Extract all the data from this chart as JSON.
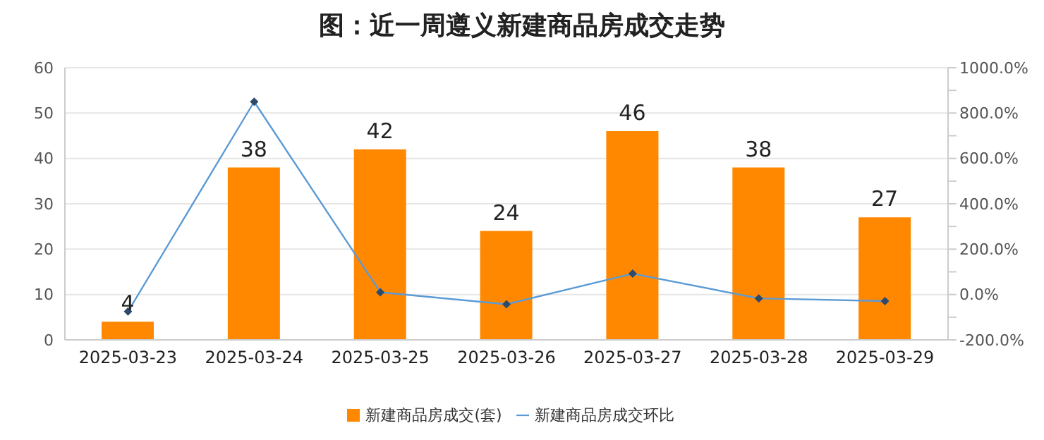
{
  "chart_data": {
    "type": "bar",
    "title": "图：近一周遵义新建商品房成交走势",
    "categories": [
      "2025-03-23",
      "2025-03-24",
      "2025-03-25",
      "2025-03-26",
      "2025-03-27",
      "2025-03-28",
      "2025-03-29"
    ],
    "series": [
      {
        "name": "新建商品房成交(套)",
        "color": "#ff8800",
        "values": [
          4,
          38,
          42,
          24,
          46,
          38,
          27
        ],
        "value_labels": [
          "4",
          "38",
          "42",
          "24",
          "46",
          "38",
          "27"
        ]
      },
      {
        "name": "新建商品房成交环比",
        "type": "line",
        "axis": "y2",
        "color": "#5b9bd5",
        "marker": "diamond",
        "values": [
          -75,
          850,
          10,
          -43,
          92,
          -17,
          -29
        ]
      }
    ],
    "ylim": [
      0,
      60
    ],
    "yticks": [
      0,
      10,
      20,
      30,
      40,
      50,
      60
    ],
    "y2lim": [
      -200,
      1000
    ],
    "y2ticks": [
      {
        "value": -200,
        "label": "-200.0%"
      },
      {
        "value": -100,
        "label": null
      },
      {
        "value": 0,
        "label": "0.0%"
      },
      {
        "value": 100,
        "label": null
      },
      {
        "value": 200,
        "label": "200.0%"
      },
      {
        "value": 300,
        "label": null
      },
      {
        "value": 400,
        "label": "400.0%"
      },
      {
        "value": 500,
        "label": null
      },
      {
        "value": 600,
        "label": "600.0%"
      },
      {
        "value": 700,
        "label": null
      },
      {
        "value": 800,
        "label": "800.0%"
      },
      {
        "value": 900,
        "label": null
      },
      {
        "value": 1000,
        "label": "1000.0%"
      }
    ],
    "grid": "y",
    "legend": "bottom"
  }
}
